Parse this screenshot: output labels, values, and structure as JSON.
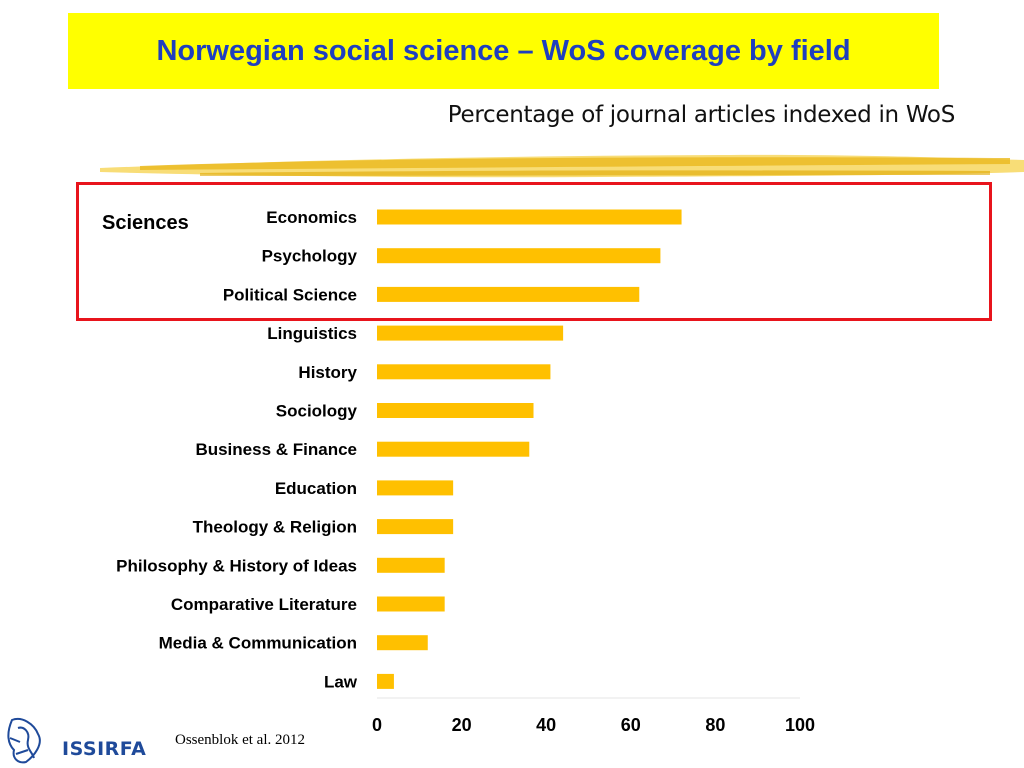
{
  "slide": {
    "title": "Norwegian social science – WoS coverage by field",
    "subtitle": "Percentage of journal articles indexed in WoS",
    "group_label": "Sciences",
    "citation": "Ossenblok et al. 2012",
    "logo_text": "ISSIRFA"
  },
  "colors": {
    "title_bg": "#ffff00",
    "title_text": "#1f3fbf",
    "bar": "#ffc000",
    "highlight": "#e8141c"
  },
  "chart_data": {
    "type": "bar",
    "orientation": "horizontal",
    "categories": [
      "Economics",
      "Psychology",
      "Political Science",
      "Linguistics",
      "History",
      "Sociology",
      "Business & Finance",
      "Education",
      "Theology & Religion",
      "Philosophy & History of Ideas",
      "Comparative Literature",
      "Media & Communication",
      "Law"
    ],
    "values": [
      72,
      67,
      62,
      44,
      41,
      37,
      36,
      18,
      18,
      16,
      16,
      12,
      4
    ],
    "xlim": [
      0,
      100
    ],
    "xticks": [
      0,
      20,
      40,
      60,
      80,
      100
    ],
    "highlighted_categories": [
      "Economics",
      "Psychology",
      "Political Science"
    ],
    "grid": false,
    "legend": "none"
  }
}
